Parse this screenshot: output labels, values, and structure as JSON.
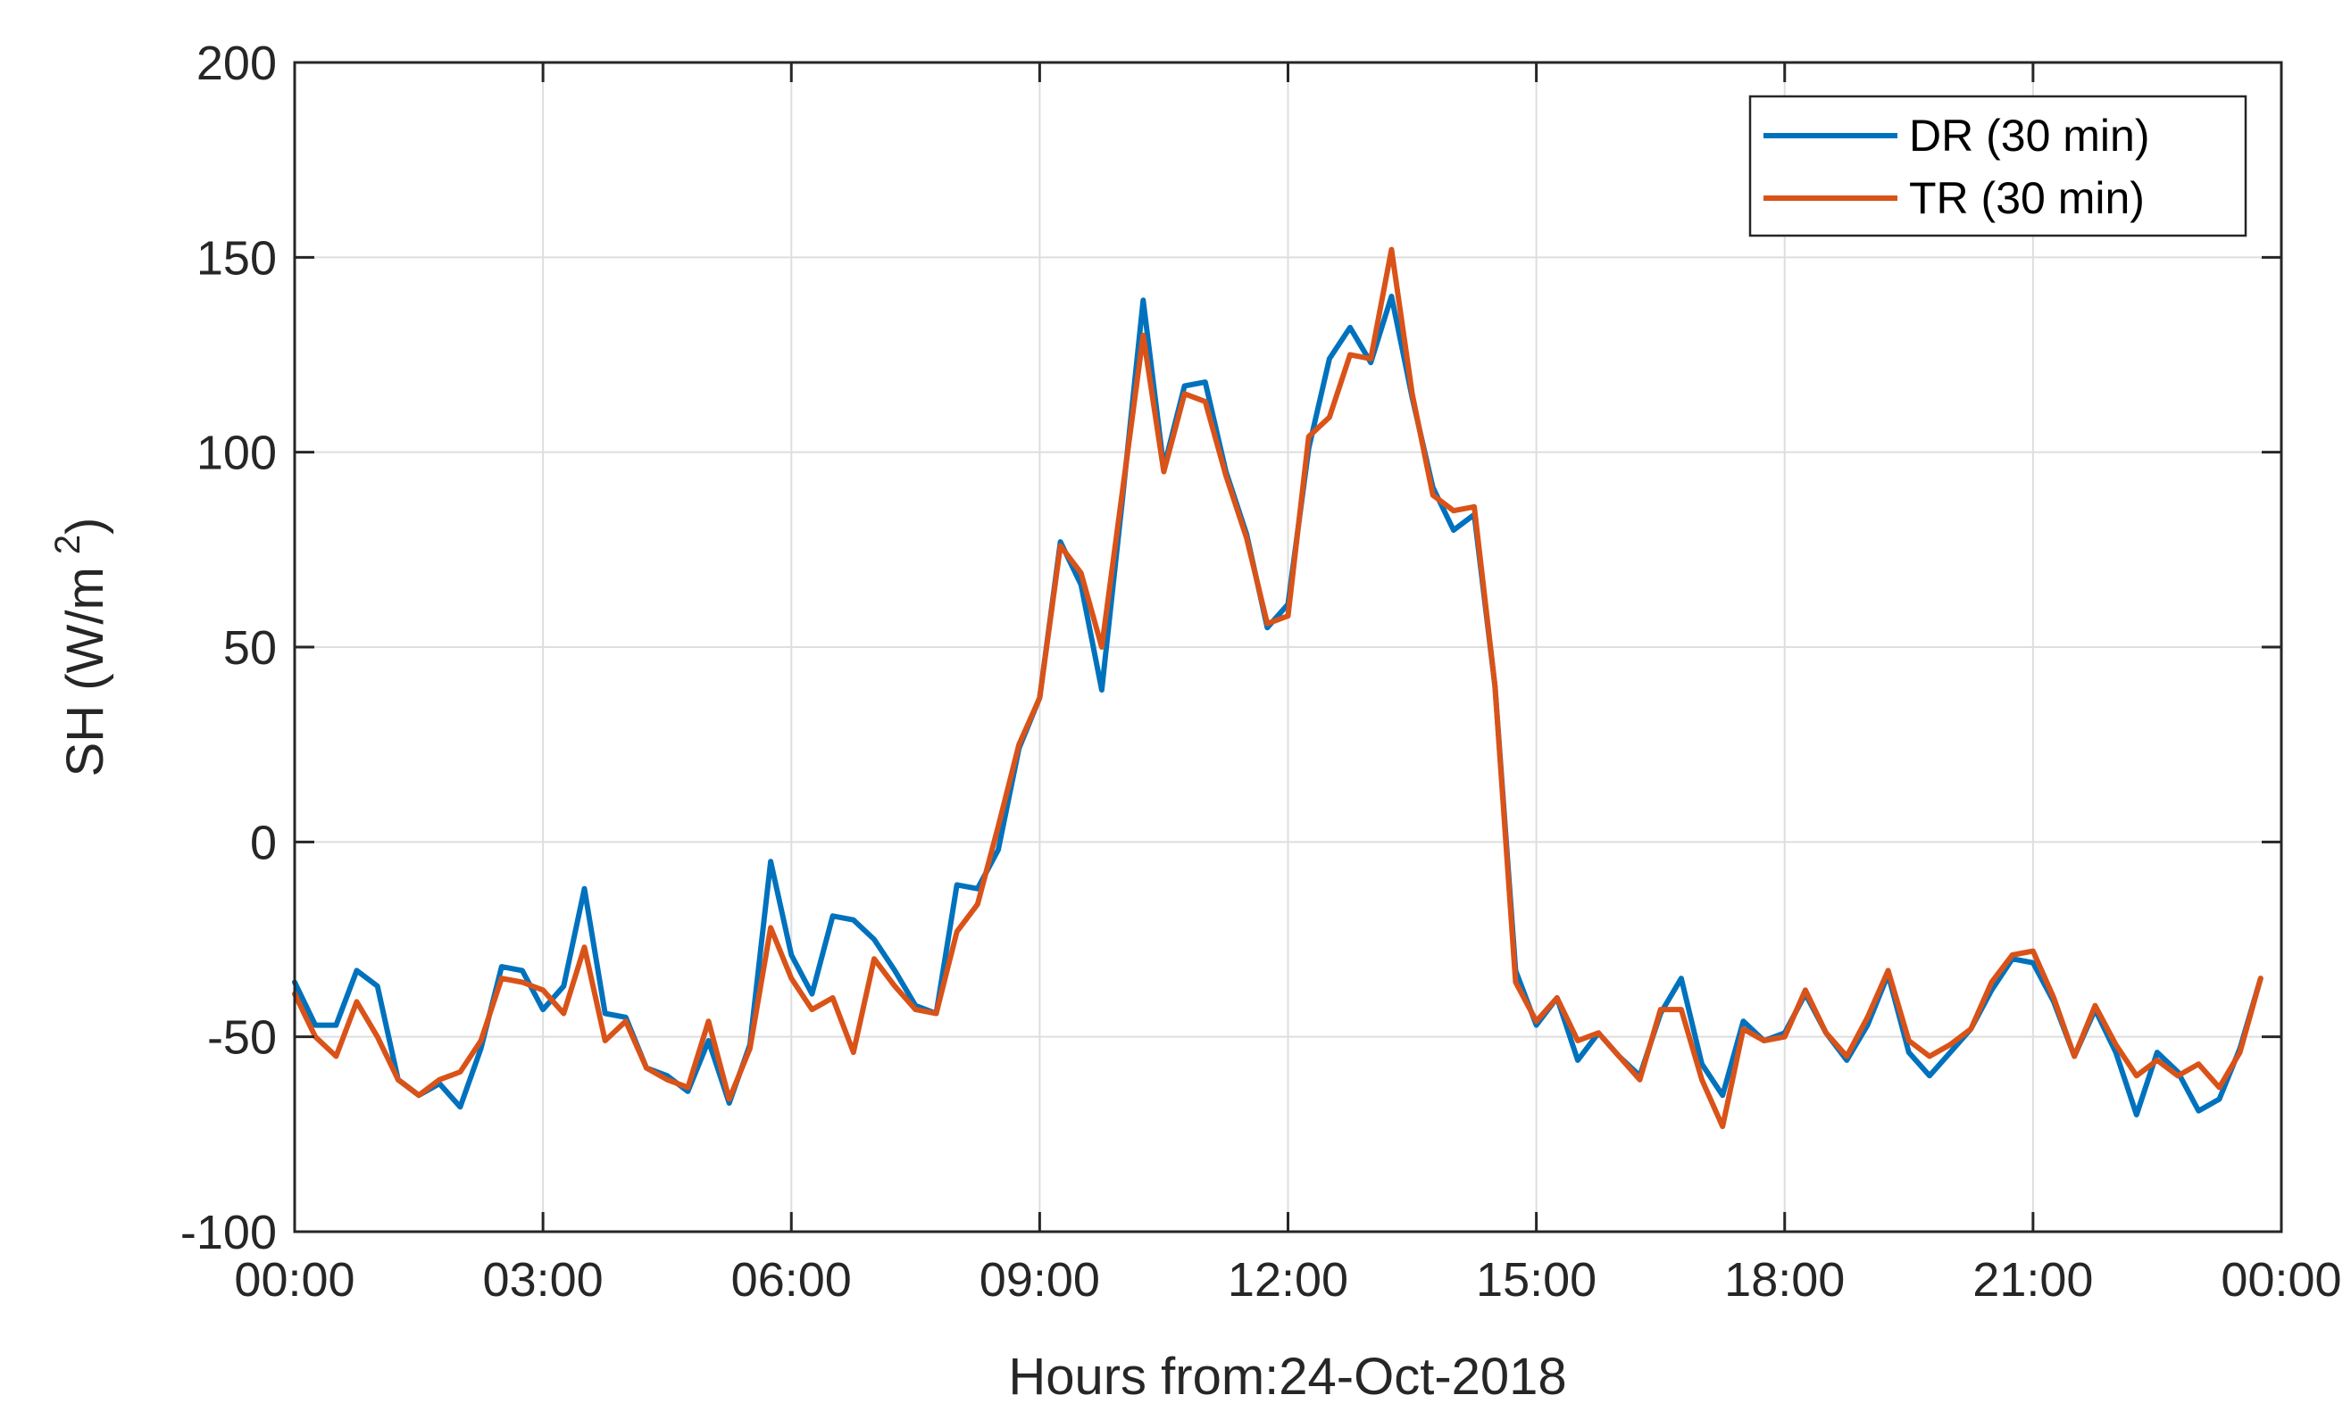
{
  "chart_data": {
    "type": "line",
    "title": "",
    "xlabel": "Hours from:24-Oct-2018",
    "ylabel": "SH (W/m",
    "ylabel_superscript": "2",
    "ylabel_close": ")",
    "xlim": [
      0,
      24
    ],
    "ylim": [
      -100,
      200
    ],
    "x_ticks": [
      0,
      3,
      6,
      9,
      12,
      15,
      18,
      21,
      24
    ],
    "x_tick_labels": [
      "00:00",
      "03:00",
      "06:00",
      "09:00",
      "12:00",
      "15:00",
      "18:00",
      "21:00",
      "00:00"
    ],
    "y_ticks": [
      -100,
      -50,
      0,
      50,
      100,
      150,
      200
    ],
    "y_tick_labels": [
      "-100",
      "-50",
      "0",
      "50",
      "100",
      "150",
      "200"
    ],
    "grid": true,
    "legend_position": "top-right",
    "x_interval_hours": 0.25,
    "series": [
      {
        "name": "DR (30 min)",
        "color": "#0072BD",
        "values": [
          -36,
          -47,
          -47,
          -33,
          -37,
          -61,
          -65,
          -62,
          -68,
          -53,
          -32,
          -33,
          -43,
          -37,
          -12,
          -44,
          -45,
          -58,
          -60,
          -64,
          -51,
          -67,
          -52,
          -5,
          -29,
          -39,
          -19,
          -20,
          -25,
          -33,
          -42,
          -44,
          -11,
          -12,
          -2,
          24,
          37,
          77,
          66,
          39,
          88,
          139,
          96,
          117,
          118,
          95,
          79,
          55,
          61,
          101,
          124,
          132,
          123,
          140,
          114,
          91,
          80,
          84,
          40,
          -33,
          -47,
          -40,
          -56,
          -49,
          -55,
          -60,
          -44,
          -35,
          -57,
          -65,
          -46,
          -51,
          -49,
          -39,
          -49,
          -56,
          -47,
          -34,
          -54,
          -60,
          -54,
          -48,
          -38,
          -30,
          -31,
          -41,
          -55,
          -43,
          -54,
          -70,
          -54,
          -59,
          -69,
          -66,
          -53,
          -35
        ],
        "show_legend": true
      },
      {
        "name": "TR (30 min)",
        "color": "#D95319",
        "values": [
          -39,
          -50,
          -55,
          -41,
          -50,
          -61,
          -65,
          -61,
          -59,
          -51,
          -35,
          -36,
          -38,
          -44,
          -27,
          -51,
          -46,
          -58,
          -61,
          -63,
          -46,
          -66,
          -53,
          -22,
          -35,
          -43,
          -40,
          -54,
          -30,
          -37,
          -43,
          -44,
          -23,
          -16,
          4,
          25,
          37,
          76,
          69,
          50,
          90,
          130,
          95,
          115,
          113,
          94,
          78,
          56,
          58,
          104,
          109,
          125,
          124,
          152,
          115,
          89,
          85,
          86,
          40,
          -36,
          -46,
          -40,
          -51,
          -49,
          -55,
          -61,
          -43,
          -43,
          -61,
          -73,
          -48,
          -51,
          -50,
          -38,
          -49,
          -55,
          -45,
          -33,
          -51,
          -55,
          -52,
          -48,
          -36,
          -29,
          -28,
          -40,
          -55,
          -42,
          -52,
          -60,
          -56,
          -60,
          -57,
          -63,
          -54,
          -35
        ],
        "show_legend": true
      }
    ]
  }
}
